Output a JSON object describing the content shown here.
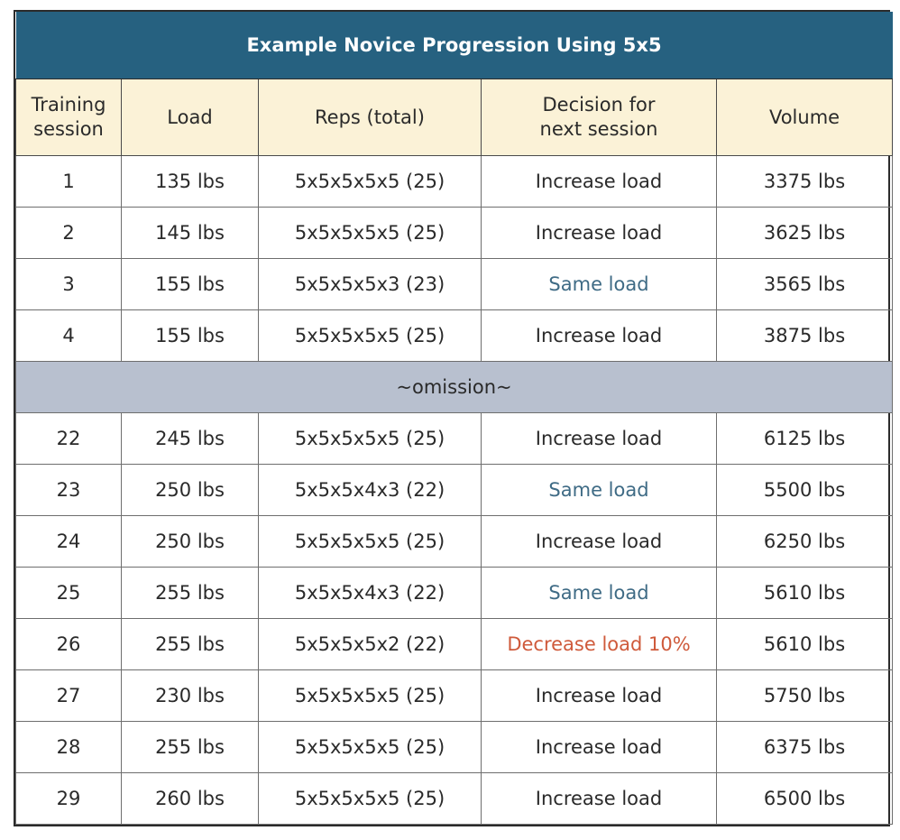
{
  "title": "Example Novice Progression Using 5x5",
  "headers": {
    "session": "Training\nsession",
    "load": "Load",
    "reps": "Reps (total)",
    "decision": "Decision for\nnext session",
    "volume": "Volume"
  },
  "rows_top": [
    {
      "session": "1",
      "load": "135 lbs",
      "reps": "5x5x5x5x5 (25)",
      "decision": "Increase load",
      "decision_type": "increase",
      "volume": "3375 lbs"
    },
    {
      "session": "2",
      "load": "145 lbs",
      "reps": "5x5x5x5x5 (25)",
      "decision": "Increase load",
      "decision_type": "increase",
      "volume": "3625 lbs"
    },
    {
      "session": "3",
      "load": "155 lbs",
      "reps": "5x5x5x5x3 (23)",
      "decision": "Same load",
      "decision_type": "same",
      "volume": "3565 lbs"
    },
    {
      "session": "4",
      "load": "155 lbs",
      "reps": "5x5x5x5x5 (25)",
      "decision": "Increase load",
      "decision_type": "increase",
      "volume": "3875 lbs"
    }
  ],
  "omission": "~omission~",
  "rows_bottom": [
    {
      "session": "22",
      "load": "245 lbs",
      "reps": "5x5x5x5x5 (25)",
      "decision": "Increase load",
      "decision_type": "increase",
      "volume": "6125 lbs"
    },
    {
      "session": "23",
      "load": "250 lbs",
      "reps": "5x5x5x4x3 (22)",
      "decision": "Same load",
      "decision_type": "same",
      "volume": "5500 lbs"
    },
    {
      "session": "24",
      "load": "250 lbs",
      "reps": "5x5x5x5x5 (25)",
      "decision": "Increase load",
      "decision_type": "increase",
      "volume": "6250 lbs"
    },
    {
      "session": "25",
      "load": "255 lbs",
      "reps": "5x5x5x4x3 (22)",
      "decision": "Same load",
      "decision_type": "same",
      "volume": "5610 lbs"
    },
    {
      "session": "26",
      "load": "255 lbs",
      "reps": "5x5x5x5x2 (22)",
      "decision": "Decrease load 10%",
      "decision_type": "decrease",
      "volume": "5610 lbs"
    },
    {
      "session": "27",
      "load": "230 lbs",
      "reps": "5x5x5x5x5 (25)",
      "decision": "Increase load",
      "decision_type": "increase",
      "volume": "5750 lbs"
    },
    {
      "session": "28",
      "load": "255 lbs",
      "reps": "5x5x5x5x5 (25)",
      "decision": "Increase load",
      "decision_type": "increase",
      "volume": "6375 lbs"
    },
    {
      "session": "29",
      "load": "260 lbs",
      "reps": "5x5x5x5x5 (25)",
      "decision": "Increase load",
      "decision_type": "increase",
      "volume": "6500 lbs"
    }
  ],
  "colors": {
    "title_bg": "#266180",
    "header_bg": "#fbf2d7",
    "omission_bg": "#b8c0cf",
    "same_text": "#3f6b85",
    "decrease_text": "#cf5a3b"
  }
}
